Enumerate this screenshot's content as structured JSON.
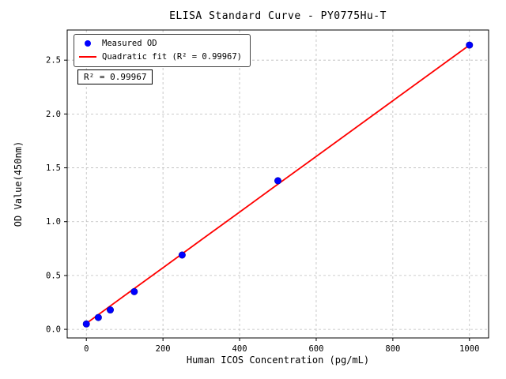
{
  "chart_data": {
    "type": "scatter",
    "title": "ELISA Standard Curve - PY0775Hu-T",
    "xlabel": "Human ICOS Concentration (pg/mL)",
    "ylabel": "OD Value(450nm)",
    "xlim": [
      -50,
      1050
    ],
    "ylim": [
      -0.08,
      2.78
    ],
    "xticks": [
      0,
      200,
      400,
      600,
      800,
      1000
    ],
    "yticks": [
      0.0,
      0.5,
      1.0,
      1.5,
      2.0,
      2.5
    ],
    "grid": true,
    "legend_position": "upper left",
    "annotation": "R² = 0.99967",
    "series": [
      {
        "name": "Measured OD",
        "type": "scatter",
        "color": "#0000ff",
        "x": [
          0,
          31.25,
          62.5,
          125,
          250,
          500,
          1000
        ],
        "y": [
          0.05,
          0.11,
          0.18,
          0.35,
          0.69,
          1.38,
          2.64
        ]
      },
      {
        "name": "Quadratic fit (R² = 0.99967)",
        "type": "line",
        "color": "#ff0000",
        "x": [
          0,
          100,
          200,
          300,
          400,
          500,
          600,
          700,
          800,
          900,
          1000
        ],
        "y": [
          0.055,
          0.314,
          0.572,
          0.831,
          1.089,
          1.348,
          1.606,
          1.864,
          2.123,
          2.381,
          2.64
        ]
      }
    ]
  }
}
